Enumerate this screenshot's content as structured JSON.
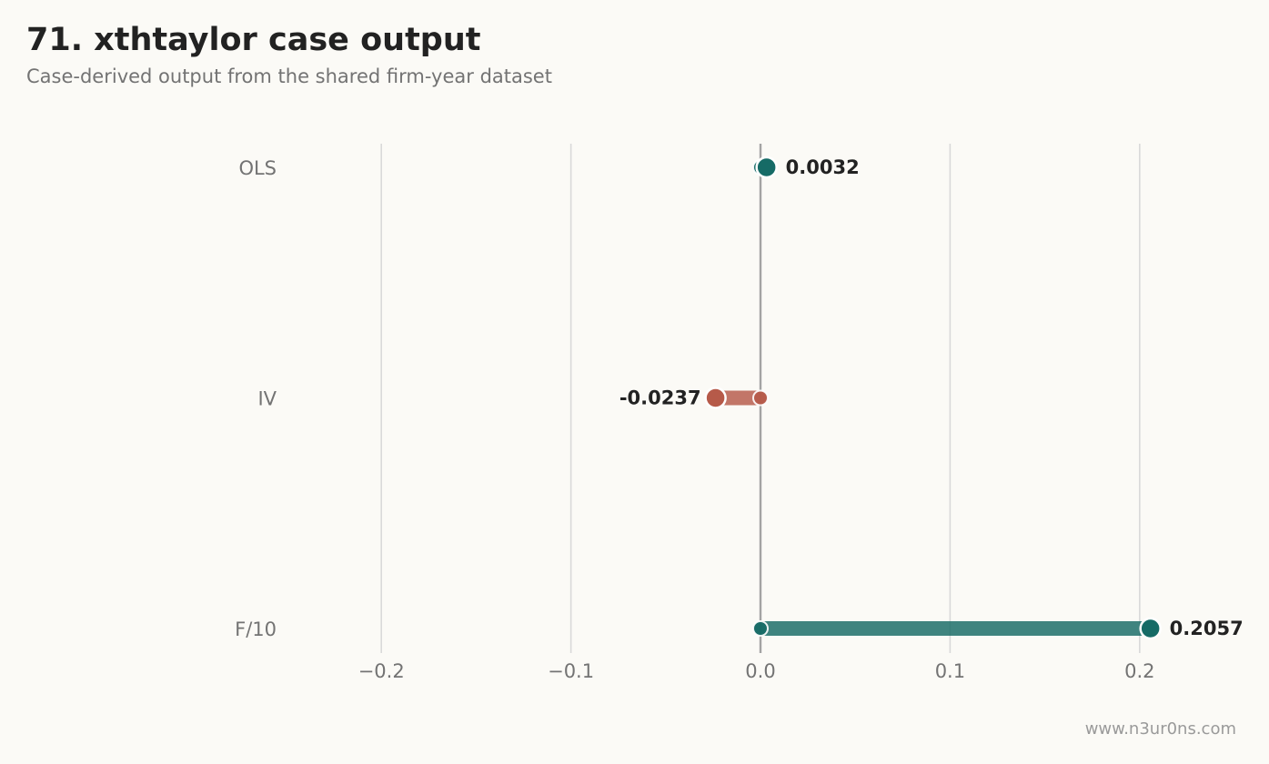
{
  "page": {
    "title": "71. xthtaylor case output",
    "subtitle": "Case-derived output from the shared firm-year dataset",
    "footer": "www.n3ur0ns.com"
  },
  "colors": {
    "background": "#fbfaf6",
    "positive": "#166b66",
    "negative": "#b65a49",
    "grid": "#d9d9d9",
    "zero_line": "#a3a3a3",
    "label": "#222222",
    "tick": "#737373"
  },
  "chart_data": {
    "type": "lollipop",
    "orientation": "horizontal",
    "categories": [
      "OLS",
      "IV",
      "F/10"
    ],
    "values": [
      0.0032,
      -0.0237,
      0.2057
    ],
    "value_labels": [
      "0.0032",
      "-0.0237",
      "0.2057"
    ],
    "xlim": [
      -0.25,
      0.25
    ],
    "xticks": [
      -0.2,
      -0.1,
      0.0,
      0.1,
      0.2
    ],
    "xtick_labels": [
      "−0.2",
      "−0.1",
      "0.0",
      "0.1",
      "0.2"
    ],
    "baseline": 0,
    "grid": "vertical",
    "legend": "none",
    "xlabel": "",
    "ylabel": ""
  }
}
